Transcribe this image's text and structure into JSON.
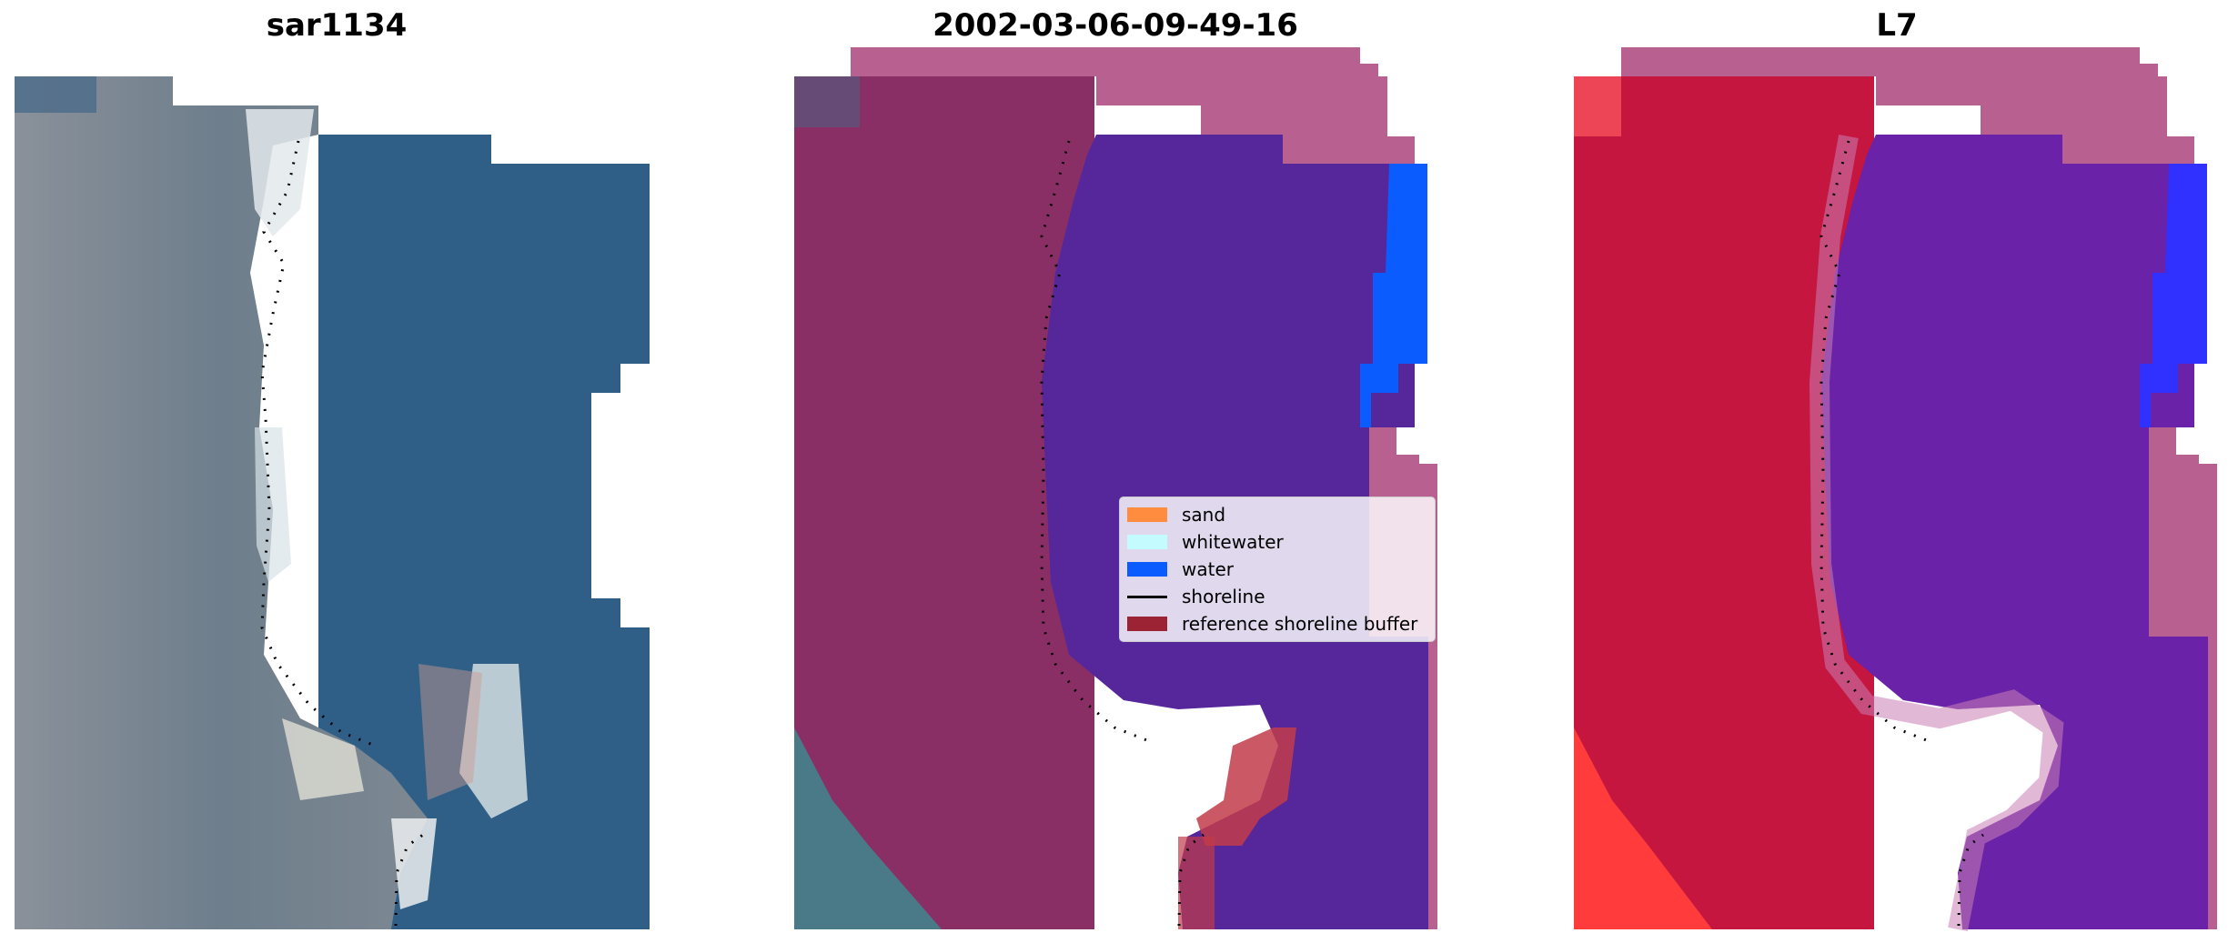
{
  "panels": [
    {
      "title": "sar1134"
    },
    {
      "title": "2002-03-06-09-49-16"
    },
    {
      "title": "L7"
    }
  ],
  "legend": {
    "items": [
      {
        "label": "sand",
        "kind": "patch",
        "color": "#ff8c3f"
      },
      {
        "label": "whitewater",
        "kind": "patch",
        "color": "#c4fbff"
      },
      {
        "label": "water",
        "kind": "patch",
        "color": "#0a5cff"
      },
      {
        "label": "shoreline",
        "kind": "line",
        "color": "#000000"
      },
      {
        "label": "reference shoreline buffer",
        "kind": "patch",
        "color": "#9b2333"
      }
    ]
  },
  "colors": {
    "rgb_water": "#2f5f86",
    "rgb_land": "#6b7c8a",
    "rgb_whitewater": "#e8eef0",
    "class_land_tint": "#8a2f66",
    "class_water": "#55279a",
    "class_buffer": "#b8608f",
    "class_blue": "#0a5cff",
    "l7_land": "#c4163f",
    "l7_water": "#6a22a8",
    "l7_edge": "#ff4040",
    "l7_blue": "#3030ff"
  }
}
